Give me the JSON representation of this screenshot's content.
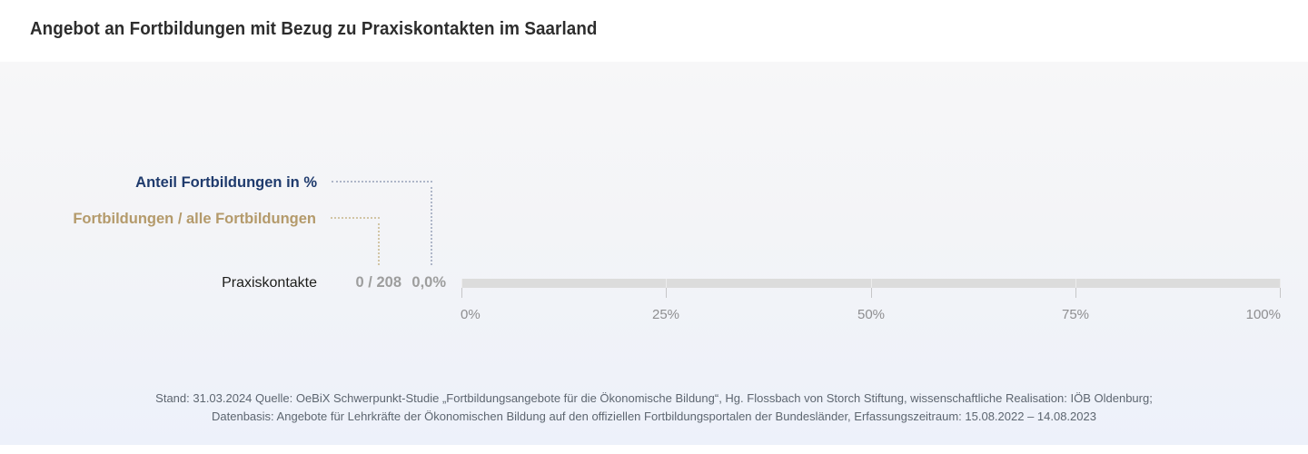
{
  "header": {
    "title": "Angebot an Fortbildungen mit Bezug zu Praxiskontakten im Saarland"
  },
  "legend": {
    "percent_label": "Anteil Fortbildungen in %",
    "fraction_label": "Fortbildungen / alle Fortbildungen"
  },
  "row": {
    "category": "Praxiskontakte",
    "fraction": "0 / 208",
    "percent": "0,0%",
    "bar_style": "width:0%"
  },
  "axis": {
    "ticks": [
      "0%",
      "25%",
      "50%",
      "75%",
      "100%"
    ]
  },
  "footer": {
    "line1": "Stand: 31.03.2024 Quelle: OeBiX Schwerpunkt-Studie „Fortbildungsangebote für die Ökonomische Bildung“, Hg. Flossbach von Storch Stiftung, wissenschaftliche Realisation: IÖB Oldenburg;",
    "line2": "Datenbasis: Angebote für Lehrkräfte der Ökonomischen Bildung auf den offiziellen Fortbildungsportalen der Bundesländer, Erfassungszeitraum: 15.08.2022 – 14.08.2023"
  },
  "colors": {
    "accent_navy": "#1f3b6d",
    "accent_tan": "#b49a6b",
    "leader_blue": "#aeb6c8",
    "leader_tan": "#d2c5a5",
    "value_gray": "#9d9d9d",
    "track_gray": "#dcdcdc",
    "tick_gray": "#c6c6c8",
    "axis_label_gray": "#8e8e90",
    "footer_gray": "#5d6670",
    "title_color": "#2d2d2d"
  },
  "chart_data": {
    "type": "bar",
    "orientation": "horizontal",
    "title": "Angebot an Fortbildungen mit Bezug zu Praxiskontakten im Saarland",
    "categories": [
      "Praxiskontakte"
    ],
    "series": [
      {
        "name": "Anteil Fortbildungen in %",
        "values": [
          0.0
        ],
        "unit": "%",
        "value_labels": [
          "0,0%"
        ]
      },
      {
        "name": "Fortbildungen / alle Fortbildungen",
        "numerator": [
          0
        ],
        "denominator": [
          208
        ],
        "value_labels": [
          "0 / 208"
        ]
      }
    ],
    "xlim": [
      0,
      100
    ],
    "x_tick_labels": [
      "0%",
      "25%",
      "50%",
      "75%",
      "100%"
    ],
    "grid": false,
    "legend_position": "top-left-with-dotted-leaders",
    "annotations": [
      "Stand: 31.03.2024 Quelle: OeBiX Schwerpunkt-Studie „Fortbildungsangebote für die Ökonomische Bildung“, Hg. Flossbach von Storch Stiftung, wissenschaftliche Realisation: IÖB Oldenburg;",
      "Datenbasis: Angebote für Lehrkräfte der Ökonomischen Bildung auf den offiziellen Fortbildungsportalen der Bundesländer, Erfassungszeitraum: 15.08.2022 – 14.08.2023"
    ]
  }
}
